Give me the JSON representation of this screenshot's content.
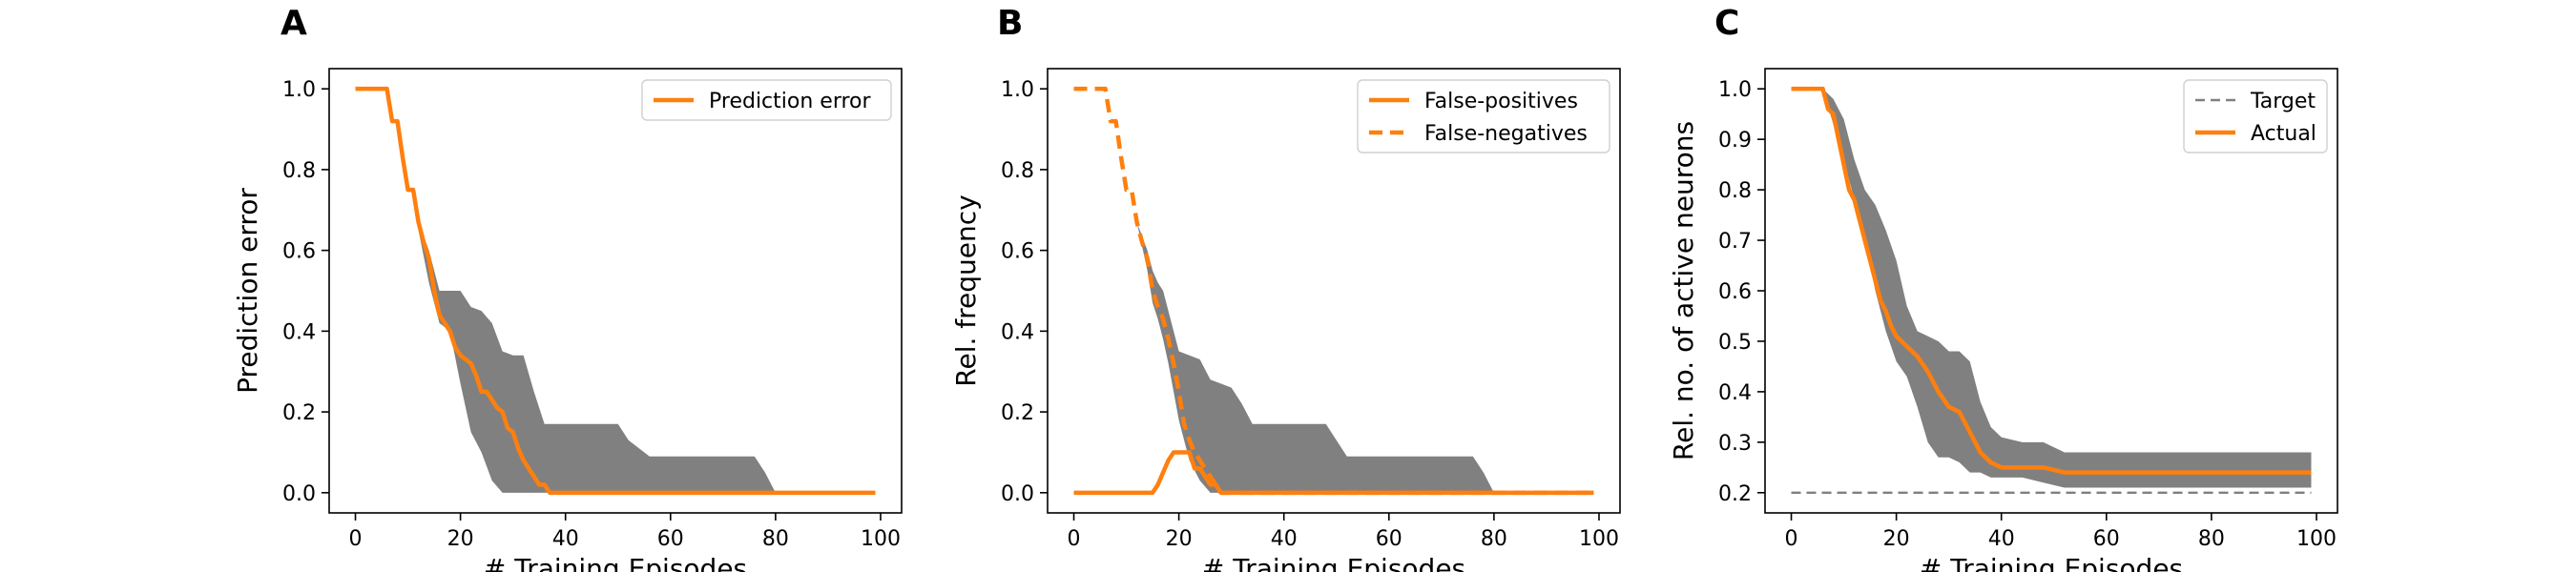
{
  "figure": {
    "panels": [
      {
        "letter": "A"
      },
      {
        "letter": "B"
      },
      {
        "letter": "C"
      }
    ]
  },
  "colors": {
    "series": "#ff7f0e",
    "band": "#808080",
    "target": "#808080",
    "axes": "#000000"
  },
  "chart_data": [
    {
      "type": "line",
      "panel": "A",
      "xlabel": "# Training Episodes",
      "ylabel": "Prediction error",
      "xlim": [
        -5,
        104
      ],
      "ylim": [
        -0.05,
        1.05
      ],
      "xticks": [
        0,
        20,
        40,
        60,
        80,
        100
      ],
      "yticks": [
        0.0,
        0.2,
        0.4,
        0.6,
        0.8,
        1.0
      ],
      "ytick_labels": [
        "0.0",
        "0.2",
        "0.4",
        "0.6",
        "0.8",
        "1.0"
      ],
      "legend_position": "upper right",
      "grid": false,
      "series": [
        {
          "name": "Prediction error",
          "style": "solid",
          "x": [
            0,
            6,
            7,
            8,
            9,
            10,
            11,
            12,
            13,
            14,
            15,
            16,
            17,
            18,
            19,
            20,
            21,
            22,
            23,
            24,
            25,
            26,
            27,
            28,
            29,
            30,
            31,
            32,
            33,
            34,
            35,
            36,
            37,
            38,
            99
          ],
          "y": [
            1.0,
            1.0,
            0.92,
            0.92,
            0.83,
            0.75,
            0.75,
            0.67,
            0.62,
            0.58,
            0.5,
            0.44,
            0.42,
            0.4,
            0.36,
            0.34,
            0.33,
            0.32,
            0.29,
            0.25,
            0.25,
            0.23,
            0.21,
            0.2,
            0.16,
            0.15,
            0.11,
            0.08,
            0.06,
            0.04,
            0.02,
            0.02,
            0.0,
            0.0,
            0.0
          ]
        }
      ],
      "band": {
        "x": [
          12,
          14,
          16,
          18,
          20,
          22,
          24,
          26,
          28,
          30,
          32,
          34,
          36,
          37,
          38,
          40,
          44,
          48,
          50,
          52,
          56,
          60,
          64,
          68,
          70,
          72,
          76,
          78,
          80,
          99
        ],
        "upper": [
          0.67,
          0.6,
          0.5,
          0.5,
          0.5,
          0.46,
          0.45,
          0.42,
          0.35,
          0.34,
          0.34,
          0.25,
          0.17,
          0.17,
          0.17,
          0.17,
          0.17,
          0.17,
          0.17,
          0.13,
          0.09,
          0.09,
          0.09,
          0.09,
          0.09,
          0.09,
          0.09,
          0.05,
          0.0,
          0.0
        ],
        "lower": [
          0.65,
          0.52,
          0.42,
          0.4,
          0.27,
          0.15,
          0.1,
          0.03,
          0.0,
          0.0,
          0.0,
          0.0,
          0.0,
          0.0,
          0.0,
          0.0,
          0.0,
          0.0,
          0.0,
          0.0,
          0.0,
          0.0,
          0.0,
          0.0,
          0.0,
          0.0,
          0.0,
          0.0,
          0.0,
          0.0
        ]
      }
    },
    {
      "type": "line",
      "panel": "B",
      "xlabel": "# Training Episodes",
      "ylabel": "Rel. frequency",
      "xlim": [
        -5,
        104
      ],
      "ylim": [
        -0.05,
        1.05
      ],
      "xticks": [
        0,
        20,
        40,
        60,
        80,
        100
      ],
      "yticks": [
        0.0,
        0.2,
        0.4,
        0.6,
        0.8,
        1.0
      ],
      "ytick_labels": [
        "0.0",
        "0.2",
        "0.4",
        "0.6",
        "0.8",
        "1.0"
      ],
      "legend_position": "upper right",
      "grid": false,
      "series": [
        {
          "name": "False-positives",
          "style": "solid",
          "x": [
            0,
            15,
            16,
            17,
            18,
            19,
            20,
            21,
            22,
            23,
            24,
            25,
            26,
            27,
            28,
            99
          ],
          "y": [
            0.0,
            0.0,
            0.02,
            0.05,
            0.08,
            0.1,
            0.1,
            0.1,
            0.1,
            0.06,
            0.06,
            0.04,
            0.02,
            0.02,
            0.0,
            0.0
          ]
        },
        {
          "name": "False-negatives",
          "style": "dashed",
          "x": [
            0,
            6,
            7,
            8,
            9,
            10,
            11,
            12,
            13,
            14,
            15,
            16,
            17,
            18,
            19,
            20,
            21,
            22,
            23,
            24,
            25,
            26,
            27,
            28,
            29,
            99
          ],
          "y": [
            1.0,
            1.0,
            0.92,
            0.92,
            0.83,
            0.75,
            0.75,
            0.67,
            0.62,
            0.58,
            0.5,
            0.46,
            0.43,
            0.38,
            0.32,
            0.25,
            0.17,
            0.13,
            0.1,
            0.08,
            0.06,
            0.04,
            0.02,
            0.0,
            0.0,
            0.0
          ]
        }
      ],
      "band": {
        "x": [
          12,
          14,
          15,
          16,
          17,
          18,
          20,
          22,
          24,
          26,
          28,
          30,
          32,
          34,
          36,
          38,
          40,
          48,
          50,
          52,
          56,
          60,
          64,
          70,
          74,
          76,
          78,
          80,
          99
        ],
        "upper": [
          0.67,
          0.6,
          0.55,
          0.52,
          0.5,
          0.45,
          0.35,
          0.34,
          0.33,
          0.28,
          0.27,
          0.26,
          0.22,
          0.17,
          0.17,
          0.17,
          0.17,
          0.17,
          0.13,
          0.09,
          0.09,
          0.09,
          0.09,
          0.09,
          0.09,
          0.09,
          0.05,
          0.0,
          0.0
        ],
        "lower": [
          0.67,
          0.55,
          0.47,
          0.43,
          0.38,
          0.32,
          0.18,
          0.08,
          0.03,
          0.0,
          0.0,
          0.0,
          0.0,
          0.0,
          0.0,
          0.0,
          0.0,
          0.0,
          0.0,
          0.0,
          0.0,
          0.0,
          0.0,
          0.0,
          0.0,
          0.0,
          0.0,
          0.0,
          0.0
        ]
      }
    },
    {
      "type": "line",
      "panel": "C",
      "xlabel": "# Training Episodes",
      "ylabel": "Rel. no. of active neurons",
      "xlim": [
        -5,
        104
      ],
      "ylim": [
        0.16,
        1.04
      ],
      "xticks": [
        0,
        20,
        40,
        60,
        80,
        100
      ],
      "yticks": [
        0.2,
        0.3,
        0.4,
        0.5,
        0.6,
        0.7,
        0.8,
        0.9,
        1.0
      ],
      "ytick_labels": [
        "0.2",
        "0.3",
        "0.4",
        "0.5",
        "0.6",
        "0.7",
        "0.8",
        "0.9",
        "1.0"
      ],
      "legend_position": "upper right",
      "grid": false,
      "series": [
        {
          "name": "Target",
          "style": "thin-dashed",
          "x": [
            0,
            99
          ],
          "y": [
            0.2,
            0.2
          ]
        },
        {
          "name": "Actual",
          "style": "solid",
          "x": [
            0,
            6,
            7,
            8,
            9,
            10,
            11,
            12,
            13,
            14,
            15,
            16,
            17,
            18,
            19,
            20,
            22,
            24,
            26,
            28,
            30,
            32,
            34,
            36,
            38,
            40,
            44,
            48,
            52,
            99
          ],
          "y": [
            1.0,
            1.0,
            0.96,
            0.95,
            0.9,
            0.85,
            0.8,
            0.78,
            0.74,
            0.7,
            0.66,
            0.62,
            0.58,
            0.56,
            0.53,
            0.51,
            0.49,
            0.47,
            0.44,
            0.4,
            0.37,
            0.36,
            0.32,
            0.28,
            0.26,
            0.25,
            0.25,
            0.25,
            0.24,
            0.24
          ]
        }
      ],
      "band": {
        "x": [
          6,
          8,
          10,
          12,
          14,
          16,
          18,
          20,
          22,
          24,
          26,
          28,
          30,
          32,
          34,
          36,
          38,
          40,
          44,
          48,
          52,
          56,
          60,
          80,
          99
        ],
        "upper": [
          1.0,
          0.98,
          0.94,
          0.86,
          0.8,
          0.77,
          0.72,
          0.66,
          0.57,
          0.52,
          0.51,
          0.5,
          0.48,
          0.48,
          0.46,
          0.38,
          0.33,
          0.31,
          0.3,
          0.3,
          0.28,
          0.28,
          0.28,
          0.28,
          0.28
        ],
        "lower": [
          1.0,
          0.93,
          0.86,
          0.78,
          0.7,
          0.6,
          0.52,
          0.46,
          0.43,
          0.37,
          0.3,
          0.27,
          0.27,
          0.26,
          0.24,
          0.24,
          0.23,
          0.23,
          0.23,
          0.22,
          0.21,
          0.21,
          0.21,
          0.21,
          0.21
        ]
      }
    }
  ]
}
